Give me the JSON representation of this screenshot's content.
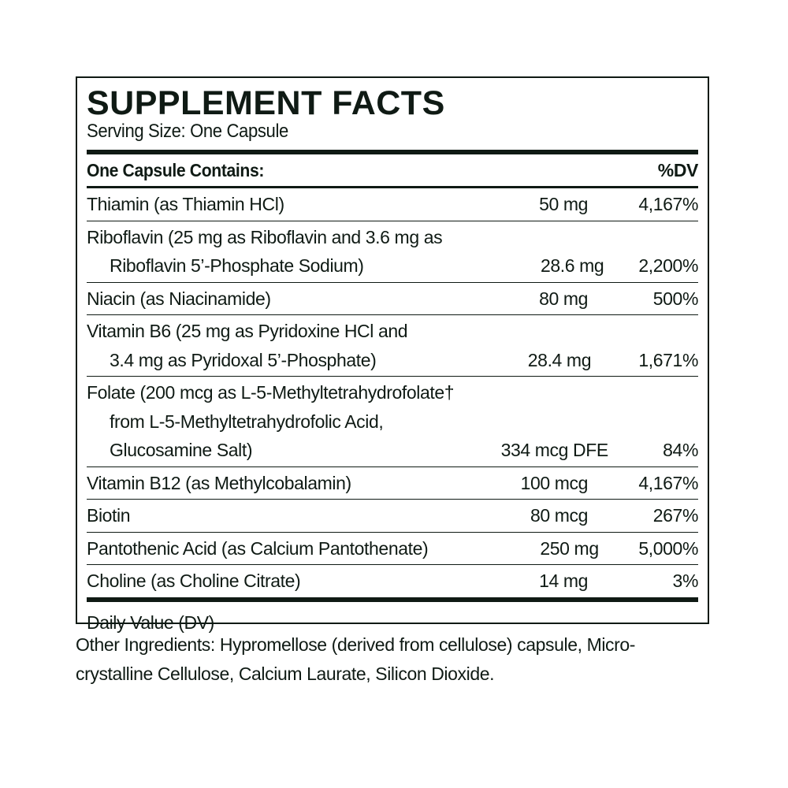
{
  "title": "SUPPLEMENT FACTS",
  "serving_size": "Serving Size: One Capsule",
  "header": {
    "contains": "One Capsule Contains:",
    "dv": "%DV"
  },
  "rows": [
    {
      "lines": [
        "Thiamin (as Thiamin HCl)"
      ],
      "amount": "50 mg",
      "dv": "4,167%"
    },
    {
      "lines": [
        "Riboflavin (25 mg as Riboflavin and 3.6 mg as",
        "Riboflavin 5’-Phosphate Sodium)"
      ],
      "amount": "28.6 mg",
      "dv": "2,200%"
    },
    {
      "lines": [
        "Niacin (as Niacinamide)"
      ],
      "amount": "80 mg",
      "dv": "500%"
    },
    {
      "lines": [
        "Vitamin B6 (25 mg as Pyridoxine HCl and",
        "3.4 mg as Pyridoxal 5’-Phosphate)"
      ],
      "amount": "28.4 mg",
      "dv": "1,671%"
    },
    {
      "lines": [
        "Folate (200 mcg as L-5-Methyltetrahydrofolate†",
        "from L-5-Methyltetrahydrofolic Acid,",
        "Glucosamine Salt)"
      ],
      "amount": "334 mcg DFE",
      "dv": "84%"
    },
    {
      "lines": [
        "Vitamin B12 (as Methylcobalamin)"
      ],
      "amount": "100 mcg",
      "dv": "4,167%"
    },
    {
      "lines": [
        "Biotin"
      ],
      "amount": "80 mcg",
      "dv": "267%"
    },
    {
      "lines": [
        "Pantothenic Acid (as Calcium Pantothenate)"
      ],
      "amount": "250 mg",
      "dv": "5,000%"
    },
    {
      "lines": [
        "Choline (as Choline Citrate)"
      ],
      "amount": "14 mg",
      "dv": "3%"
    }
  ],
  "footnote": "Daily Value (DV)",
  "other_ingredients": [
    "Other Ingredients: Hypromellose (derived from cellulose) capsule, Micro-",
    "crystalline Cellulose, Calcium Laurate, Silicon Dioxide."
  ]
}
